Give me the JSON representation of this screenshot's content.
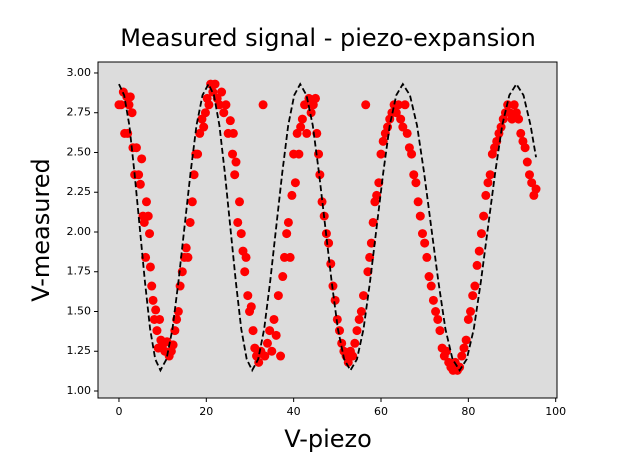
{
  "chart_data": {
    "type": "scatter",
    "title": "Measured signal - piezo-expansion",
    "x_label": "V-piezo",
    "y_label": "V-measured",
    "xlim": [
      -4.8,
      100.3
    ],
    "ylim": [
      0.956,
      3.069
    ],
    "xticks": [
      0,
      20,
      40,
      60,
      80,
      100
    ],
    "yticks": [
      {
        "value": 1.0,
        "label": "1.00"
      },
      {
        "value": 1.25,
        "label": "1.25"
      },
      {
        "value": 1.5,
        "label": "1.50"
      },
      {
        "value": 1.75,
        "label": "1.75"
      },
      {
        "value": 2.0,
        "label": "2.00"
      },
      {
        "value": 2.25,
        "label": "2.25"
      },
      {
        "value": 2.5,
        "label": "2.50"
      },
      {
        "value": 2.75,
        "label": "2.75"
      },
      {
        "value": 3.0,
        "label": "3.00"
      }
    ],
    "background": "#dcdcdc",
    "grid": false,
    "series": [
      {
        "type": "scatter",
        "color": "#ff0000",
        "x": [
          0,
          0.5,
          1,
          1.3,
          1.8,
          2,
          2.3,
          2.6,
          3,
          3.2,
          3.6,
          4,
          4.5,
          4.9,
          5.2,
          5.5,
          5.8,
          6.1,
          6.3,
          6.7,
          7,
          7.2,
          7.5,
          7.8,
          8.1,
          8.4,
          8.7,
          9,
          9.3,
          9.6,
          10,
          10.5,
          11,
          11.5,
          12,
          12.4,
          12.8,
          13.2,
          13.6,
          14,
          14.5,
          15,
          15.4,
          15.8,
          16.3,
          16.8,
          17.2,
          17.6,
          18,
          18.5,
          19,
          19.4,
          19.8,
          20.2,
          20.6,
          21,
          21.5,
          22,
          22.5,
          23,
          23.5,
          24,
          24.5,
          25,
          25.5,
          26,
          26.2,
          26.5,
          26.8,
          27.2,
          27.6,
          28,
          28.4,
          28.8,
          29.1,
          29.5,
          29.9,
          30.3,
          30.7,
          31.1,
          31.5,
          32,
          32.5,
          33,
          33.4,
          34,
          34.5,
          35,
          35.5,
          36,
          36.5,
          37,
          37.5,
          37.9,
          38.4,
          38.8,
          39.2,
          39.6,
          40,
          40.4,
          40.8,
          41.2,
          41.6,
          42,
          42.5,
          43,
          43.5,
          44,
          44.5,
          45,
          45.3,
          45.7,
          46,
          46.5,
          47,
          47.5,
          48,
          48.5,
          49,
          49.5,
          50,
          50.5,
          51,
          51.5,
          52,
          52.5,
          53,
          53.5,
          54,
          54.5,
          55,
          55.5,
          56,
          56.5,
          57,
          57.4,
          57.8,
          58.2,
          58.6,
          59,
          59.5,
          60,
          60.5,
          61,
          61.5,
          62,
          62.5,
          63,
          63.5,
          64,
          64.5,
          65,
          65.5,
          66,
          66.5,
          67,
          67.5,
          68,
          68.5,
          69,
          69.5,
          70,
          70.5,
          71,
          71.5,
          72,
          72.5,
          73,
          73.5,
          74,
          74.5,
          75,
          75.5,
          76,
          76.5,
          77,
          77.5,
          78,
          78.5,
          79,
          79.5,
          80,
          80.5,
          81,
          81.5,
          82,
          82.5,
          83,
          83.5,
          84,
          84.5,
          85,
          85.5,
          86,
          86.5,
          87,
          87.5,
          88,
          88.5,
          89,
          89.5,
          90,
          90.5,
          91,
          91.5,
          92,
          92.5,
          93,
          93.5,
          94,
          94.5,
          95,
          95.5
        ],
        "values": [
          2.8,
          2.8,
          2.88,
          2.62,
          2.85,
          2.62,
          2.8,
          2.85,
          2.75,
          2.53,
          2.36,
          2.53,
          2.36,
          2.3,
          2.46,
          2.1,
          2.06,
          1.84,
          2.19,
          2.1,
          1.99,
          1.78,
          1.66,
          1.57,
          1.45,
          1.51,
          1.38,
          1.27,
          1.45,
          1.32,
          1.29,
          1.25,
          1.31,
          1.22,
          1.25,
          1.29,
          1.38,
          1.45,
          1.5,
          1.66,
          1.75,
          1.84,
          1.9,
          1.84,
          2.06,
          2.19,
          2.36,
          2.49,
          2.49,
          2.62,
          2.71,
          2.66,
          2.75,
          2.84,
          2.8,
          2.93,
          2.88,
          2.93,
          2.84,
          2.8,
          2.88,
          2.75,
          2.8,
          2.62,
          2.7,
          2.49,
          2.62,
          2.36,
          2.44,
          2.06,
          2.19,
          1.99,
          1.88,
          1.75,
          1.84,
          1.6,
          1.5,
          1.53,
          1.38,
          1.27,
          1.22,
          1.18,
          1.25,
          2.8,
          1.22,
          1.3,
          1.38,
          1.25,
          1.45,
          1.35,
          1.6,
          1.22,
          1.72,
          1.84,
          1.99,
          2.06,
          1.84,
          2.23,
          2.49,
          2.31,
          2.62,
          2.49,
          2.66,
          2.71,
          2.8,
          2.62,
          2.84,
          2.75,
          2.8,
          2.84,
          2.62,
          2.49,
          2.36,
          2.19,
          2.1,
          1.99,
          1.93,
          1.8,
          1.66,
          1.57,
          1.45,
          1.38,
          1.3,
          1.25,
          1.22,
          1.18,
          1.25,
          1.22,
          1.3,
          1.38,
          1.45,
          1.5,
          1.6,
          2.8,
          1.75,
          1.84,
          1.93,
          2.06,
          2.19,
          2.23,
          2.31,
          2.49,
          2.57,
          2.62,
          2.66,
          2.71,
          2.75,
          2.8,
          2.75,
          2.8,
          2.71,
          2.66,
          2.8,
          2.62,
          2.53,
          2.49,
          2.36,
          2.31,
          2.19,
          2.1,
          1.99,
          1.93,
          1.84,
          1.72,
          1.66,
          1.57,
          1.5,
          1.45,
          1.38,
          1.27,
          1.22,
          1.25,
          1.18,
          1.15,
          1.13,
          1.18,
          1.13,
          1.15,
          1.22,
          1.27,
          1.32,
          1.45,
          1.5,
          1.6,
          1.66,
          1.79,
          1.88,
          1.99,
          2.1,
          2.23,
          2.31,
          2.36,
          2.49,
          2.53,
          2.57,
          2.62,
          2.66,
          2.71,
          2.75,
          2.8,
          2.75,
          2.71,
          2.8,
          2.75,
          2.71,
          2.62,
          2.57,
          2.53,
          2.44,
          2.36,
          2.31,
          2.23,
          2.27
        ]
      },
      {
        "type": "line",
        "color": "#000000",
        "linestyle": "dashed",
        "x": [
          0,
          1.19,
          2.38,
          3.56,
          4.75,
          5.94,
          7.13,
          8.31,
          9.5,
          10.88,
          12.25,
          13.63,
          15,
          16.38,
          17.75,
          19.13,
          20.5,
          21.75,
          23,
          24.25,
          25.5,
          26.75,
          28,
          29.25,
          30.5,
          31.88,
          33.25,
          34.63,
          36,
          37.38,
          38.75,
          40.13,
          41.5,
          42.94,
          44.38,
          45.81,
          47.25,
          48.69,
          50.13,
          51.56,
          53,
          54.5,
          56,
          57.5,
          59,
          60.5,
          62,
          63.5,
          65,
          66.63,
          68.25,
          69.88,
          71.5,
          73.13,
          74.75,
          76.38,
          78,
          79.63,
          81.25,
          82.88,
          84.5,
          86.13,
          87.75,
          89.38,
          91,
          92.63,
          94.25,
          95.5
        ],
        "values": [
          2.93,
          2.86,
          2.67,
          2.37,
          2.03,
          1.69,
          1.39,
          1.2,
          1.13,
          1.2,
          1.39,
          1.69,
          2.03,
          2.37,
          2.67,
          2.86,
          2.93,
          2.86,
          2.67,
          2.37,
          2.03,
          1.69,
          1.39,
          1.2,
          1.13,
          1.2,
          1.39,
          1.69,
          2.03,
          2.37,
          2.67,
          2.86,
          2.93,
          2.86,
          2.67,
          2.37,
          2.03,
          1.69,
          1.39,
          1.2,
          1.13,
          1.2,
          1.39,
          1.69,
          2.03,
          2.37,
          2.67,
          2.86,
          2.93,
          2.86,
          2.67,
          2.37,
          2.03,
          1.69,
          1.39,
          1.2,
          1.13,
          1.2,
          1.39,
          1.69,
          2.03,
          2.37,
          2.67,
          2.86,
          2.93,
          2.86,
          2.67,
          2.47
        ]
      }
    ]
  }
}
